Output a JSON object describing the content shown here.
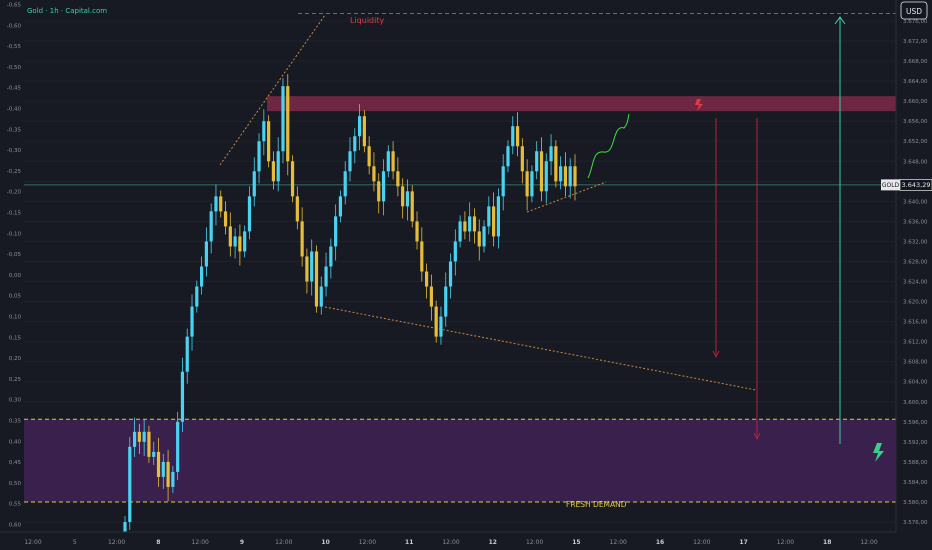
{
  "header": {
    "title": "Gold · 1h · Capital.com",
    "currency": "USD"
  },
  "annotations": {
    "liquidity": "Liquidity",
    "fresh_demand": "FRESH DEMAND"
  },
  "price_label": {
    "symbol": "GOLD",
    "value": "3.643,29",
    "price": 3643.29
  },
  "left_axis": {
    "labels": [
      "-0,65",
      "-0,60",
      "-0,55",
      "-0,50",
      "-0,45",
      "-0,40",
      "-0,35",
      "-0,30",
      "-0,25",
      "-0,20",
      "-0,15",
      "-0,10",
      "-0,05",
      "0,00",
      "0,05",
      "0,10",
      "0,15",
      "0,20",
      "0,25",
      "0,30",
      "0,35",
      "0,40",
      "0,45",
      "0,50",
      "0,55",
      "0,60"
    ]
  },
  "right_axis": {
    "labels": [
      "3.676,00",
      "3.672,00",
      "3.668,00",
      "3.664,00",
      "3.660,00",
      "3.656,00",
      "3.652,00",
      "3.648,00",
      "3.644,00",
      "3.640,00",
      "3.636,00",
      "3.632,00",
      "3.628,00",
      "3.624,00",
      "3.620,00",
      "3.616,00",
      "3.612,00",
      "3.608,00",
      "3.604,00",
      "3.600,00",
      "3.596,00",
      "3.592,00",
      "3.588,00",
      "3.584,00",
      "3.580,00",
      "3.576,00"
    ],
    "values": [
      3676,
      3672,
      3668,
      3664,
      3660,
      3656,
      3652,
      3648,
      3644,
      3640,
      3636,
      3632,
      3628,
      3624,
      3620,
      3616,
      3612,
      3608,
      3604,
      3600,
      3596,
      3592,
      3588,
      3584,
      3580,
      3576
    ]
  },
  "time_axis": {
    "labels": [
      "12:00",
      "5",
      "12:00",
      "8",
      "12:00",
      "9",
      "12:00",
      "10",
      "12:00",
      "11",
      "12:00",
      "12",
      "12:00",
      "15",
      "12:00",
      "16",
      "12:00",
      "17",
      "12:00",
      "18",
      "12:00"
    ],
    "bold": [
      "8",
      "9",
      "10",
      "11",
      "12",
      "15",
      "16",
      "17",
      "18"
    ]
  },
  "chart_data": {
    "type": "candlestick",
    "title": "Gold · 1h · Capital.com",
    "currency": "USD",
    "last_price": 3643.29,
    "y_range": [
      3574,
      3680
    ],
    "levels": {
      "liquidity_line": 3677.5,
      "supply_zone": [
        3658,
        3661
      ],
      "demand_zone": [
        3580,
        3596.5
      ]
    },
    "candle_closes": [
      3576,
      3591,
      3594,
      3592,
      3594,
      3589,
      3590,
      3585,
      3588,
      3583,
      3586,
      3596,
      3606,
      3613,
      3619,
      3623,
      3627,
      3632,
      3638,
      3641,
      3638,
      3635,
      3631,
      3633,
      3630,
      3634,
      3641,
      3646,
      3652,
      3656,
      3648,
      3644,
      3650,
      3663,
      3648,
      3641,
      3636,
      3629,
      3624,
      3630,
      3619,
      3623,
      3627,
      3631,
      3637,
      3641,
      3646,
      3650,
      3653,
      3657,
      3651,
      3647,
      3644,
      3640,
      3646,
      3650,
      3646,
      3643,
      3639,
      3642,
      3636,
      3632,
      3626,
      3623,
      3619,
      3613,
      3617,
      3623,
      3628,
      3632,
      3636,
      3634,
      3637,
      3634,
      3631,
      3635,
      3639,
      3633,
      3641,
      3647,
      3651,
      3655,
      3651,
      3646,
      3641,
      3646,
      3650,
      3642,
      3648,
      3651,
      3644,
      3647,
      3643,
      3647,
      3643
    ],
    "up_color": "#4ad3f0",
    "down_color": "#e6bd3a",
    "projection_up_target": 3678,
    "projection_down_target": 3592
  },
  "colors": {
    "background": "#171a23",
    "grid": "#20232d",
    "supply": "#7d2a48",
    "demand": "#3d2152",
    "liquidity": "#e03a45",
    "projection_green": "#36d0a8",
    "projection_red": "#d8283a",
    "dotted_orange": "#c98a3a",
    "squiggle": "#40e040",
    "lightning_green": "#36d08a"
  }
}
